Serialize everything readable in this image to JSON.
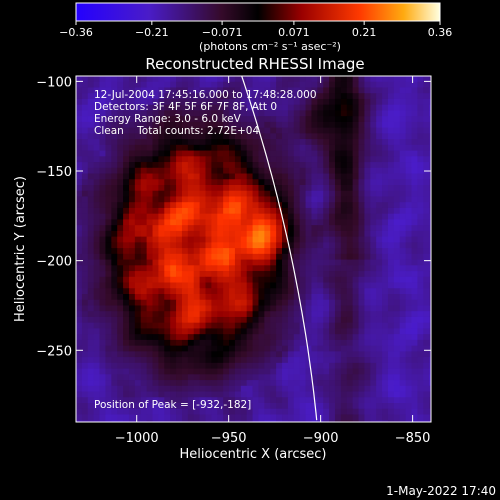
{
  "chart_data": {
    "type": "heatmap",
    "title": "Reconstructed RHESSI Image",
    "xlabel": "Heliocentric X (arcsec)",
    "ylabel": "Heliocentric Y (arcsec)",
    "xlim": [
      -1033,
      -840
    ],
    "ylim": [
      -290,
      -97
    ],
    "x_ticks": [
      -1000,
      -950,
      -900,
      -850
    ],
    "x_tick_labels": [
      "−1000",
      "−950",
      "−900",
      "−850"
    ],
    "y_ticks": [
      -100,
      -150,
      -200,
      -250
    ],
    "y_tick_labels": [
      "−100",
      "−150",
      "−200",
      "−250"
    ],
    "colorbar": {
      "range": [
        -0.36,
        0.36
      ],
      "ticks": [
        -0.36,
        -0.21,
        -0.071,
        0.071,
        0.21,
        0.36
      ],
      "tick_labels": [
        "−0.36",
        "−0.21",
        "−0.071",
        "0.071",
        "0.21",
        "0.36"
      ],
      "unit_label": "(photons cm⁻² s⁻¹ asec⁻²)"
    },
    "info_lines": [
      "12-Jul-2004 17:45:16.000 to 17:48:28.000",
      "Detectors: 3F 4F 5F 6F 7F 8F, Att 0",
      "Energy Range: 3.0 - 6.0 keV",
      "Clean    Total counts: 2.72E+04"
    ],
    "peak_label": "Position of Peak = [-932,-182]",
    "peak": [
      -932,
      -182
    ],
    "grid": false
  },
  "timestamp": "1-May-2022 17:40"
}
